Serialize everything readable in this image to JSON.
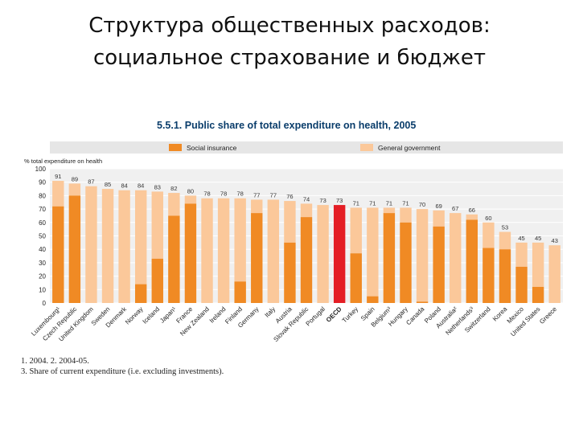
{
  "slide": {
    "title_line1": "Структура общественных расходов:",
    "title_line2": "социальное страхование и бюджет"
  },
  "colors": {
    "social_insurance": "#f08a24",
    "general_government": "#fbc89a",
    "oecd": "#e41e25",
    "legend_bar": "#e6e6e6",
    "title_text": "#0a3d6b"
  },
  "chart_data": {
    "type": "bar",
    "stacked": true,
    "title": "5.5.1. Public share of total expenditure on health, 2005",
    "ylabel": "% total expenditure on health",
    "ylim": [
      0,
      100
    ],
    "yticks": [
      0,
      10,
      20,
      30,
      40,
      50,
      60,
      70,
      80,
      90,
      100
    ],
    "grid": true,
    "legend_position": "top",
    "categories": [
      "Luxembourg¹",
      "Czech Republic",
      "United Kingdom",
      "Sweden",
      "Denmark",
      "Norway",
      "Iceland",
      "Japan¹",
      "France",
      "New Zealand",
      "Ireland",
      "Finland",
      "Germany",
      "Italy",
      "Austria",
      "Slovak Republic",
      "Portugal",
      "OECD",
      "Turkey",
      "Spain",
      "Belgium³",
      "Hungary",
      "Canada",
      "Poland",
      "Australia²",
      "Netherlands³",
      "Switzerland",
      "Korea",
      "Mexico",
      "United States",
      "Greece"
    ],
    "totals": [
      91,
      89,
      87,
      85,
      84,
      84,
      83,
      82,
      80,
      78,
      78,
      78,
      77,
      77,
      76,
      74,
      73,
      73,
      71,
      71,
      71,
      71,
      70,
      69,
      67,
      66,
      60,
      53,
      45,
      45,
      43
    ],
    "series": [
      {
        "name": "Social insurance",
        "values": [
          72,
          80,
          0,
          0,
          0,
          14,
          33,
          65,
          74,
          0,
          0,
          16,
          67,
          0,
          45,
          64,
          0,
          72,
          37,
          5,
          67,
          60,
          1,
          57,
          0,
          62,
          41,
          40,
          27,
          12,
          0
        ]
      },
      {
        "name": "General government",
        "values": [
          19,
          9,
          87,
          85,
          84,
          70,
          50,
          17,
          6,
          78,
          78,
          62,
          10,
          77,
          31,
          10,
          73,
          1,
          34,
          66,
          4,
          11,
          69,
          12,
          67,
          4,
          19,
          13,
          18,
          33,
          43
        ]
      }
    ],
    "highlight_category": "OECD",
    "footnotes": [
      "1. 2004.  2. 2004-05.",
      "3. Share of current expenditure (i.e. excluding investments)."
    ]
  }
}
